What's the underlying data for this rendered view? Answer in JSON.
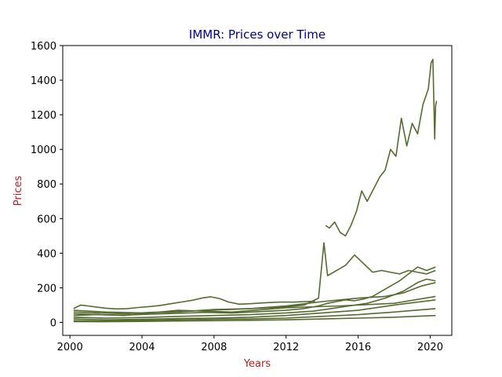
{
  "colors": {
    "line": "#556b2f",
    "title": "#00008b",
    "axis_label": "#b22222",
    "axes": "#000000"
  },
  "chart_data": {
    "type": "line",
    "title": "IMMR: Prices over Time",
    "xlabel": "Years",
    "ylabel": "Prices",
    "xlim": [
      1999.6,
      2021.2
    ],
    "ylim": [
      -75,
      1600
    ],
    "x_ticks": [
      2000,
      2004,
      2008,
      2012,
      2016,
      2020
    ],
    "y_ticks": [
      0,
      200,
      400,
      600,
      800,
      1000,
      1200,
      1400,
      1600
    ],
    "grid": false,
    "legend": "none",
    "series": [
      {
        "x": [
          2000.2,
          2000.6,
          2001.0,
          2001.5,
          2002.0,
          2002.6,
          2003.2,
          2003.8,
          2004.5,
          2005.0,
          2005.6,
          2006.2,
          2006.8,
          2007.3,
          2007.8,
          2008.3,
          2008.8,
          2009.4,
          2010.0,
          2010.6,
          2011.2,
          2011.8,
          2012.4,
          2013.0,
          2013.6
        ],
        "values": [
          80,
          100,
          95,
          88,
          82,
          78,
          80,
          86,
          92,
          98,
          108,
          118,
          128,
          140,
          148,
          138,
          118,
          105,
          108,
          112,
          115,
          118,
          117,
          120,
          122
        ]
      },
      {
        "x": [
          2014.2,
          2014.4,
          2014.7,
          2015.0,
          2015.3,
          2015.6,
          2015.9,
          2016.2,
          2016.5,
          2016.9,
          2017.2,
          2017.5,
          2017.8,
          2018.1,
          2018.4,
          2018.7,
          2019.0,
          2019.3,
          2019.6,
          2019.9,
          2020.05,
          2020.15,
          2020.25,
          2020.3,
          2020.35
        ],
        "values": [
          560,
          545,
          580,
          520,
          500,
          560,
          640,
          760,
          700,
          780,
          840,
          880,
          1000,
          960,
          1180,
          1020,
          1150,
          1090,
          1260,
          1350,
          1500,
          1520,
          1060,
          1250,
          1280
        ]
      },
      {
        "x": [
          2000.2,
          2001.5,
          2003.0,
          2004.5,
          2006.0,
          2007.5,
          2009.0,
          2010.5,
          2012.0,
          2013.0,
          2013.8,
          2014.1,
          2014.3,
          2014.8,
          2015.3,
          2015.8,
          2016.3,
          2016.8,
          2017.3,
          2017.8,
          2018.3,
          2018.8,
          2019.3,
          2019.8,
          2020.3
        ],
        "values": [
          60,
          55,
          50,
          58,
          62,
          70,
          75,
          82,
          90,
          100,
          140,
          460,
          270,
          300,
          330,
          390,
          340,
          290,
          300,
          290,
          280,
          300,
          290,
          280,
          300
        ]
      },
      {
        "x": [
          2000.2,
          2001.5,
          2003.0,
          2004.5,
          2006.0,
          2007.5,
          2009.0,
          2010.5,
          2012.0,
          2013.0,
          2013.8,
          2014.3,
          2014.8,
          2015.3,
          2015.8,
          2016.3,
          2016.8,
          2017.3,
          2017.8,
          2018.3,
          2018.8,
          2019.3,
          2019.8,
          2020.3
        ],
        "values": [
          40,
          45,
          42,
          48,
          52,
          58,
          55,
          62,
          70,
          80,
          95,
          110,
          120,
          130,
          125,
          135,
          150,
          180,
          210,
          240,
          280,
          320,
          300,
          320
        ]
      },
      {
        "x": [
          2000.2,
          2002.0,
          2004.0,
          2006.0,
          2008.0,
          2010.0,
          2012.0,
          2013.5,
          2014.5,
          2015.5,
          2016.5,
          2017.5,
          2018.5,
          2019.3,
          2019.8,
          2020.3
        ],
        "values": [
          30,
          25,
          28,
          35,
          40,
          45,
          55,
          65,
          80,
          95,
          110,
          140,
          180,
          230,
          250,
          240
        ]
      },
      {
        "x": [
          2000.2,
          2002.0,
          2004.0,
          2006.0,
          2008.0,
          2010.0,
          2012.0,
          2014.0,
          2016.0,
          2017.5,
          2018.5,
          2019.5,
          2020.3
        ],
        "values": [
          70,
          60,
          55,
          60,
          75,
          80,
          95,
          120,
          140,
          150,
          170,
          210,
          230
        ]
      },
      {
        "x": [
          2000.2,
          2002.0,
          2004.0,
          2006.0,
          2008.0,
          2010.0,
          2012.0,
          2014.0,
          2016.0,
          2018.0,
          2020.3
        ],
        "values": [
          20,
          15,
          18,
          22,
          25,
          30,
          40,
          55,
          70,
          100,
          130
        ]
      },
      {
        "x": [
          2000.2,
          2002.0,
          2004.0,
          2006.0,
          2008.0,
          2010.0,
          2012.0,
          2014.0,
          2016.0,
          2018.0,
          2020.3
        ],
        "values": [
          10,
          8,
          12,
          15,
          18,
          20,
          25,
          35,
          45,
          60,
          80
        ]
      },
      {
        "x": [
          2000.2,
          2002.0,
          2004.0,
          2006.0,
          2008.0,
          2010.0,
          2012.0,
          2014.0,
          2016.0,
          2018.0,
          2020.3
        ],
        "values": [
          5,
          4,
          6,
          8,
          10,
          12,
          15,
          20,
          25,
          30,
          40
        ]
      },
      {
        "x": [
          2000.2,
          2003.0,
          2006.0,
          2009.0,
          2012.0,
          2015.0,
          2018.0,
          2020.3
        ],
        "values": [
          50,
          40,
          70,
          60,
          85,
          95,
          110,
          150
        ]
      }
    ]
  }
}
